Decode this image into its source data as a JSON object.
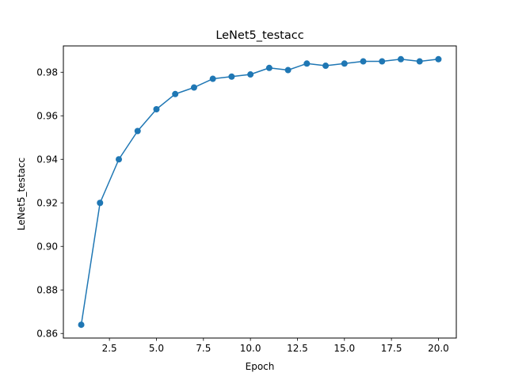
{
  "chart_data": {
    "type": "line",
    "title": "LeNet5_testacc",
    "xlabel": "Epoch",
    "ylabel": "LeNet5_testacc",
    "x": [
      1,
      2,
      3,
      4,
      5,
      6,
      7,
      8,
      9,
      10,
      11,
      12,
      13,
      14,
      15,
      16,
      17,
      18,
      19,
      20
    ],
    "series": [
      {
        "values": [
          0.864,
          0.92,
          0.94,
          0.953,
          0.963,
          0.97,
          0.973,
          0.977,
          0.978,
          0.979,
          0.982,
          0.981,
          0.984,
          0.983,
          0.984,
          0.985,
          0.985,
          0.986,
          0.985,
          0.986
        ],
        "color": "#1f77b4",
        "marker": "circle"
      }
    ],
    "xlim": [
      0.05,
      20.95
    ],
    "ylim": [
      0.8579,
      0.9921
    ],
    "xticks": [
      2.5,
      5.0,
      7.5,
      10.0,
      12.5,
      15.0,
      17.5,
      20.0
    ],
    "xtick_labels": [
      "2.5",
      "5.0",
      "7.5",
      "10.0",
      "12.5",
      "15.0",
      "17.5",
      "20.0"
    ],
    "yticks": [
      0.86,
      0.88,
      0.9,
      0.92,
      0.94,
      0.96,
      0.98
    ],
    "ytick_labels": [
      "0.86",
      "0.88",
      "0.90",
      "0.92",
      "0.94",
      "0.96",
      "0.98"
    ],
    "grid": false,
    "legend": false
  }
}
